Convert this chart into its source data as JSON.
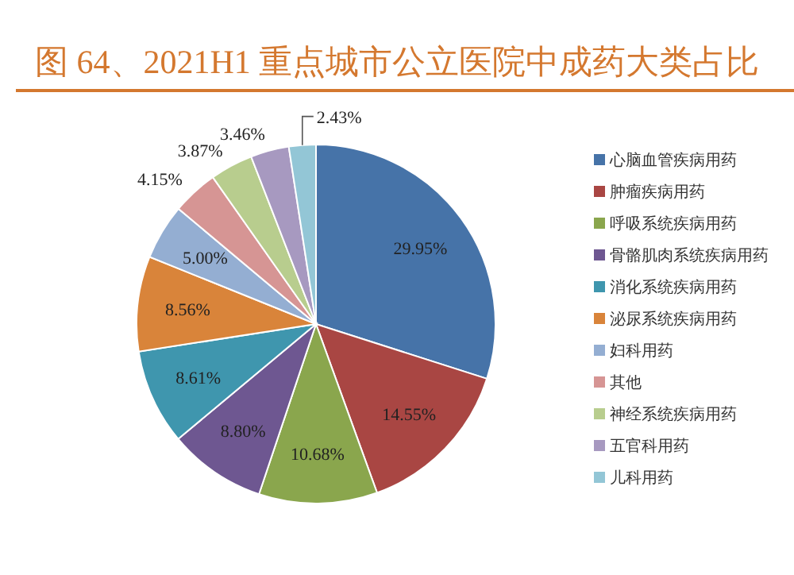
{
  "chart_data": {
    "type": "pie",
    "title": "图 64、2021H1 重点城市公立医院中成药大类占比",
    "categories": [
      "心脑血管疾病用药",
      "肿瘤疾病用药",
      "呼吸系统疾病用药",
      "骨骼肌肉系统疾病用药",
      "消化系统疾病用药",
      "泌尿系统疾病用药",
      "妇科用药",
      "其他",
      "神经系统疾病用药",
      "五官科用药",
      "儿科用药"
    ],
    "values": [
      29.95,
      14.55,
      10.68,
      8.8,
      8.61,
      8.56,
      5.0,
      4.15,
      3.87,
      3.46,
      2.43
    ],
    "value_labels": [
      "29.95%",
      "14.55%",
      "10.68%",
      "8.80%",
      "8.61%",
      "8.56%",
      "5.00%",
      "4.15%",
      "3.87%",
      "3.46%",
      "2.43%"
    ],
    "colors": [
      "#4673a8",
      "#a94643",
      "#8aa64d",
      "#6e5791",
      "#3f96ae",
      "#d9843a",
      "#94aed2",
      "#d69594",
      "#b8cd8e",
      "#a799c0",
      "#93c6d6"
    ],
    "legend": "right"
  }
}
